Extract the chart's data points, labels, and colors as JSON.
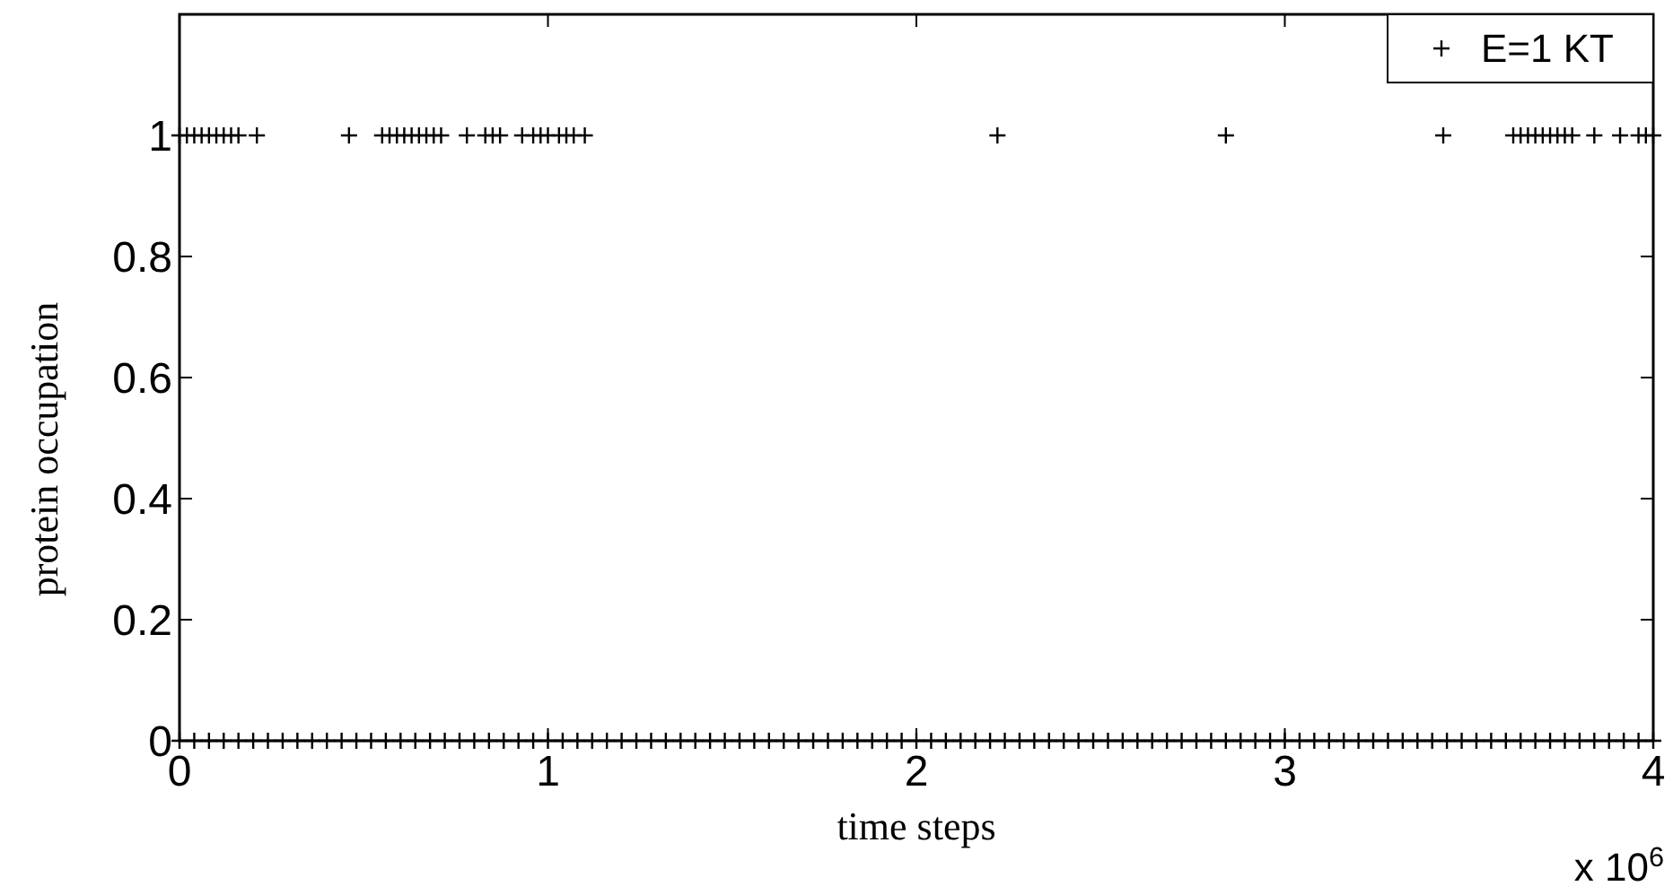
{
  "chart_data": {
    "type": "scatter",
    "xlabel": "time steps",
    "ylabel": "protein occupation",
    "annotations": [
      "x 10$^{6}$"
    ],
    "xlim": [
      0,
      4
    ],
    "ylim": [
      0,
      1.2
    ],
    "xticks": [
      0,
      1,
      2,
      3,
      4
    ],
    "yticks": [
      0,
      0.2,
      0.4,
      0.6,
      0.8,
      1
    ],
    "grid": false,
    "legend": "top right",
    "marker": "cross",
    "series": [
      {
        "name": "E=1 KT",
        "color": "#000000",
        "x": [
          0,
          0.04,
          0.08,
          0.12,
          0.16,
          0.2,
          0.24,
          0.28,
          0.32,
          0.36,
          0.4,
          0.44,
          0.48,
          0.52,
          0.56,
          0.6,
          0.64,
          0.68,
          0.72,
          0.76,
          0.8,
          0.84,
          0.88,
          0.92,
          0.96,
          1,
          1.04,
          1.08,
          1.12,
          1.16,
          1.2,
          1.24,
          1.28,
          1.32,
          1.36,
          1.4,
          1.44,
          1.48,
          1.52,
          1.56,
          1.6,
          1.64,
          1.68,
          1.72,
          1.76,
          1.8,
          1.84,
          1.88,
          1.92,
          1.96,
          2,
          2.04,
          2.08,
          2.12,
          2.16,
          2.2,
          2.24,
          2.28,
          2.32,
          2.36,
          2.4,
          2.44,
          2.48,
          2.52,
          2.56,
          2.6,
          2.64,
          2.68,
          2.72,
          2.76,
          2.8,
          2.84,
          2.88,
          2.92,
          2.96,
          3,
          3.04,
          3.08,
          3.12,
          3.16,
          3.2,
          3.24,
          3.28,
          3.32,
          3.36,
          3.4,
          3.44,
          3.48,
          3.52,
          3.56,
          3.6,
          3.64,
          3.68,
          3.72,
          3.76,
          3.8,
          3.84,
          3.88,
          3.92,
          3.96,
          4,
          0,
          0.02,
          0.04,
          0.06,
          0.08,
          0.1,
          0.12,
          0.14,
          0.16,
          0.21,
          0.46,
          0.55,
          0.57,
          0.59,
          0.61,
          0.63,
          0.65,
          0.67,
          0.69,
          0.71,
          0.78,
          0.83,
          0.85,
          0.87,
          0.93,
          0.96,
          0.98,
          1,
          1.03,
          1.05,
          1.07,
          1.1,
          2.22,
          2.84,
          3.43,
          3.62,
          3.64,
          3.66,
          3.68,
          3.7,
          3.72,
          3.74,
          3.76,
          3.78,
          3.84,
          3.91,
          3.96,
          3.98,
          4
        ],
        "values": [
          0,
          0,
          0,
          0,
          0,
          0,
          0,
          0,
          0,
          0,
          0,
          0,
          0,
          0,
          0,
          0,
          0,
          0,
          0,
          0,
          0,
          0,
          0,
          0,
          0,
          0,
          0,
          0,
          0,
          0,
          0,
          0,
          0,
          0,
          0,
          0,
          0,
          0,
          0,
          0,
          0,
          0,
          0,
          0,
          0,
          0,
          0,
          0,
          0,
          0,
          0,
          0,
          0,
          0,
          0,
          0,
          0,
          0,
          0,
          0,
          0,
          0,
          0,
          0,
          0,
          0,
          0,
          0,
          0,
          0,
          0,
          0,
          0,
          0,
          0,
          0,
          0,
          0,
          0,
          0,
          0,
          0,
          0,
          0,
          0,
          0,
          0,
          0,
          0,
          0,
          0,
          0,
          0,
          0,
          0,
          0,
          0,
          0,
          0,
          0,
          0,
          1,
          1,
          1,
          1,
          1,
          1,
          1,
          1,
          1,
          1,
          1,
          1,
          1,
          1,
          1,
          1,
          1,
          1,
          1,
          1,
          1,
          1,
          1,
          1,
          1,
          1,
          1,
          1,
          1,
          1,
          1,
          1,
          1,
          1,
          1,
          1,
          1,
          1,
          1,
          1,
          1,
          1,
          1,
          1,
          1,
          1,
          1,
          1,
          1
        ]
      }
    ]
  }
}
